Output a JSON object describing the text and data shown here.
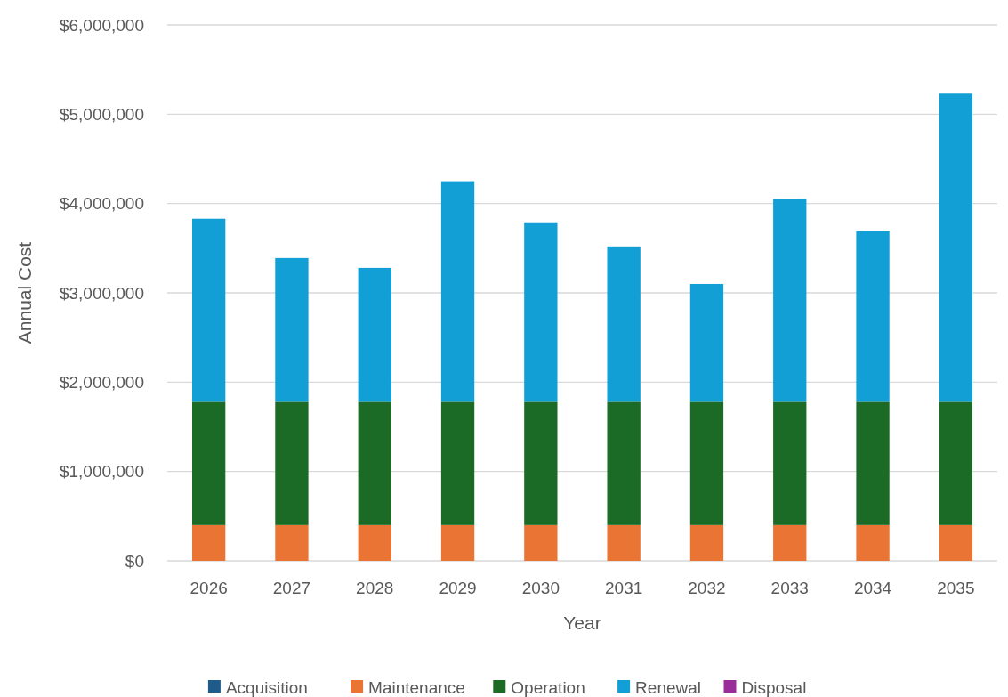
{
  "chart_data": {
    "type": "bar",
    "stacked": true,
    "xlabel": "Year",
    "ylabel": "Annual Cost",
    "categories": [
      "2026",
      "2027",
      "2028",
      "2029",
      "2030",
      "2031",
      "2032",
      "2033",
      "2034",
      "2035"
    ],
    "series": [
      {
        "name": "Acquisition",
        "color": "#1f5c8a",
        "values": [
          0,
          0,
          0,
          0,
          0,
          0,
          0,
          0,
          0,
          0
        ]
      },
      {
        "name": "Maintenance",
        "color": "#ea7434",
        "values": [
          400000,
          400000,
          400000,
          400000,
          400000,
          400000,
          400000,
          400000,
          400000,
          400000
        ]
      },
      {
        "name": "Operation",
        "color": "#1b6b26",
        "values": [
          1380000,
          1380000,
          1380000,
          1380000,
          1380000,
          1380000,
          1380000,
          1380000,
          1380000,
          1380000
        ]
      },
      {
        "name": "Renewal",
        "color": "#119fd6",
        "values": [
          2050000,
          1610000,
          1500000,
          2470000,
          2010000,
          1740000,
          1320000,
          2270000,
          1910000,
          3450000
        ]
      },
      {
        "name": "Disposal",
        "color": "#9b2d9b",
        "values": [
          0,
          0,
          0,
          0,
          0,
          0,
          0,
          0,
          0,
          0
        ]
      }
    ],
    "ylim": [
      0,
      6000000
    ],
    "yticks": [
      {
        "value": 0,
        "label": "$0"
      },
      {
        "value": 1000000,
        "label": "$1,000,000"
      },
      {
        "value": 2000000,
        "label": "$2,000,000"
      },
      {
        "value": 3000000,
        "label": "$3,000,000"
      },
      {
        "value": 4000000,
        "label": "$4,000,000"
      },
      {
        "value": 5000000,
        "label": "$5,000,000"
      },
      {
        "value": 6000000,
        "label": "$6,000,000"
      }
    ],
    "grid": "y",
    "legend": "bottom"
  }
}
